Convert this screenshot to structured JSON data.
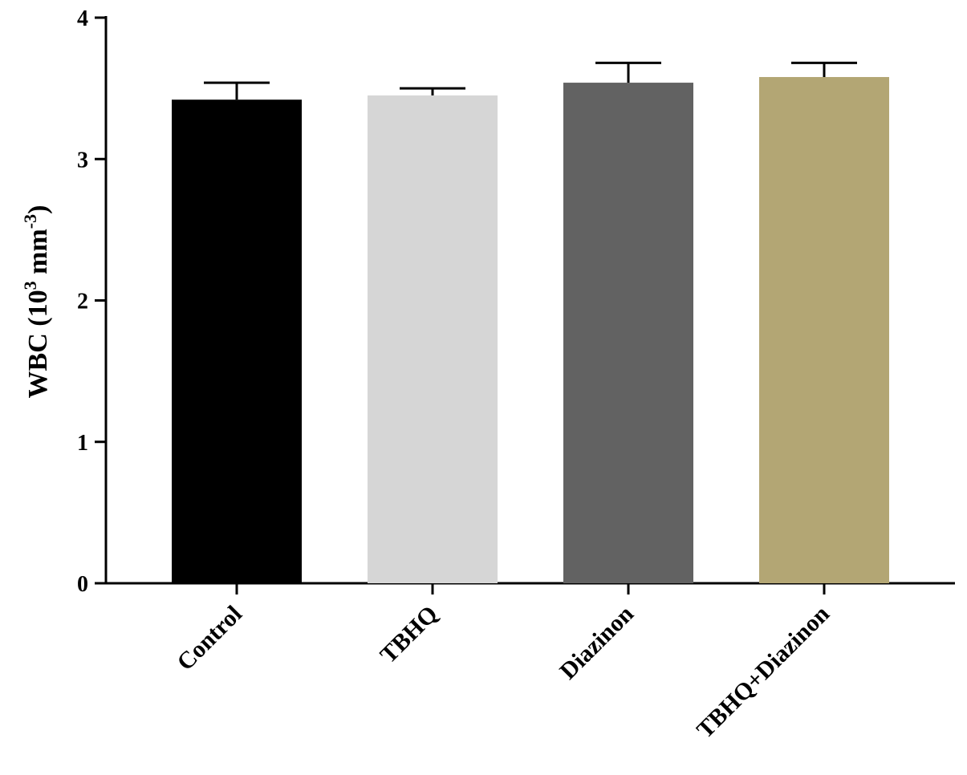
{
  "chart_data": {
    "type": "bar",
    "categories": [
      "Control",
      "TBHQ",
      "Diazinon",
      "TBHQ+Diazinon"
    ],
    "values": [
      3.42,
      3.45,
      3.54,
      3.58
    ],
    "errors": [
      0.12,
      0.05,
      0.14,
      0.1
    ],
    "colors": [
      "#000000",
      "#d6d6d6",
      "#626262",
      "#b3a674"
    ],
    "ylabel": {
      "main": "WBC  (10",
      "sup1": "3",
      "mid": " mm",
      "sup2": "-3",
      "end": ")"
    },
    "ylim": [
      0,
      4
    ],
    "yticks": [
      "0",
      "1",
      "2",
      "3",
      "4"
    ],
    "grid": false
  }
}
